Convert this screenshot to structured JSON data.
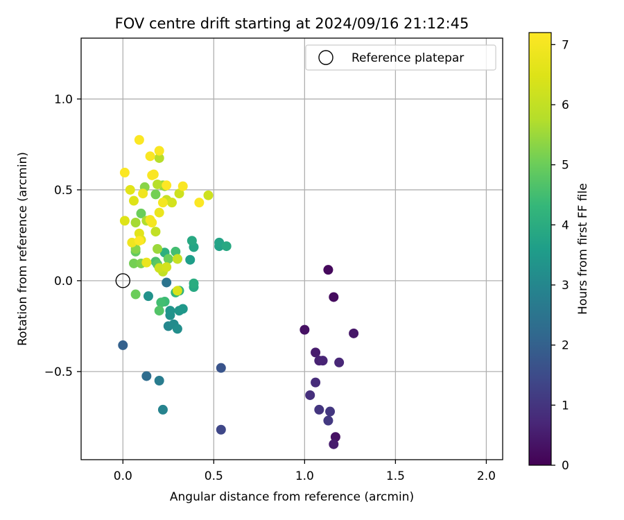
{
  "chart_data": {
    "type": "scatter",
    "title": "FOV centre drift starting at 2024/09/16 21:12:45",
    "xlabel": "Angular distance from reference (arcmin)",
    "ylabel": "Rotation from reference (arcmin)",
    "xlim": [
      -0.23,
      2.09
    ],
    "ylim": [
      -0.985,
      1.335
    ],
    "xticks": [
      0.0,
      0.5,
      1.0,
      1.5,
      2.0
    ],
    "xtick_labels": [
      "0.0",
      "0.5",
      "1.0",
      "1.5",
      "2.0"
    ],
    "yticks": [
      -0.5,
      0.0,
      0.5,
      1.0
    ],
    "ytick_labels": [
      "−0.5",
      "0.0",
      "0.5",
      "1.0"
    ],
    "grid": true,
    "legend": {
      "position": "top-right",
      "entries": [
        "Reference platepar"
      ]
    },
    "reference_point": {
      "x": 0.0,
      "y": 0.0,
      "label": "Reference platepar"
    },
    "colorbar": {
      "label": "Hours from first FF file",
      "range": [
        0,
        7.2
      ],
      "ticks": [
        0,
        1,
        2,
        3,
        4,
        5,
        6,
        7
      ],
      "tick_labels": [
        "0",
        "1",
        "2",
        "3",
        "4",
        "5",
        "6",
        "7"
      ],
      "colormap": "viridis"
    },
    "points": [
      {
        "x": 1.13,
        "y": 0.06,
        "hours": 0.15
      },
      {
        "x": 1.16,
        "y": -0.09,
        "hours": 0.2
      },
      {
        "x": 1.0,
        "y": -0.27,
        "hours": 0.3
      },
      {
        "x": 1.27,
        "y": -0.29,
        "hours": 0.4
      },
      {
        "x": 1.06,
        "y": -0.395,
        "hours": 0.5
      },
      {
        "x": 1.08,
        "y": -0.44,
        "hours": 0.6
      },
      {
        "x": 1.1,
        "y": -0.44,
        "hours": 0.65
      },
      {
        "x": 1.19,
        "y": -0.45,
        "hours": 0.7
      },
      {
        "x": 1.06,
        "y": -0.56,
        "hours": 0.8
      },
      {
        "x": 1.03,
        "y": -0.63,
        "hours": 0.9
      },
      {
        "x": 1.08,
        "y": -0.71,
        "hours": 1.0
      },
      {
        "x": 1.14,
        "y": -0.72,
        "hours": 1.05
      },
      {
        "x": 1.13,
        "y": -0.77,
        "hours": 1.1
      },
      {
        "x": 1.17,
        "y": -0.86,
        "hours": 0.3
      },
      {
        "x": 1.16,
        "y": -0.9,
        "hours": 0.5
      },
      {
        "x": 0.54,
        "y": -0.82,
        "hours": 1.4
      },
      {
        "x": 0.54,
        "y": -0.48,
        "hours": 1.7
      },
      {
        "x": 0.0,
        "y": -0.355,
        "hours": 2.0
      },
      {
        "x": 0.13,
        "y": -0.525,
        "hours": 2.3
      },
      {
        "x": 0.2,
        "y": -0.55,
        "hours": 2.7
      },
      {
        "x": 0.22,
        "y": -0.71,
        "hours": 2.9
      },
      {
        "x": 0.24,
        "y": -0.01,
        "hours": 2.5
      },
      {
        "x": 0.25,
        "y": -0.25,
        "hours": 3.0
      },
      {
        "x": 0.28,
        "y": -0.24,
        "hours": 3.1
      },
      {
        "x": 0.3,
        "y": -0.265,
        "hours": 3.2
      },
      {
        "x": 0.26,
        "y": -0.19,
        "hours": 3.3
      },
      {
        "x": 0.26,
        "y": -0.165,
        "hours": 3.35
      },
      {
        "x": 0.31,
        "y": -0.165,
        "hours": 3.4
      },
      {
        "x": 0.33,
        "y": -0.155,
        "hours": 3.45
      },
      {
        "x": 0.14,
        "y": -0.085,
        "hours": 3.3
      },
      {
        "x": 0.37,
        "y": 0.115,
        "hours": 3.6
      },
      {
        "x": 0.39,
        "y": 0.185,
        "hours": 3.8
      },
      {
        "x": 0.38,
        "y": 0.22,
        "hours": 3.9
      },
      {
        "x": 0.53,
        "y": 0.19,
        "hours": 3.7
      },
      {
        "x": 0.53,
        "y": 0.21,
        "hours": 3.75
      },
      {
        "x": 0.57,
        "y": 0.19,
        "hours": 3.9
      },
      {
        "x": 0.39,
        "y": -0.035,
        "hours": 3.9
      },
      {
        "x": 0.39,
        "y": -0.015,
        "hours": 4.0
      },
      {
        "x": 0.31,
        "y": -0.055,
        "hours": 4.2
      },
      {
        "x": 0.29,
        "y": -0.065,
        "hours": 4.3
      },
      {
        "x": 0.23,
        "y": 0.155,
        "hours": 4.1
      },
      {
        "x": 0.23,
        "y": -0.115,
        "hours": 4.4
      },
      {
        "x": 0.21,
        "y": -0.12,
        "hours": 4.5
      },
      {
        "x": 0.2,
        "y": -0.165,
        "hours": 4.7
      },
      {
        "x": 0.18,
        "y": 0.105,
        "hours": 4.6
      },
      {
        "x": 0.19,
        "y": 0.09,
        "hours": 4.8
      },
      {
        "x": 0.29,
        "y": 0.16,
        "hours": 4.5
      },
      {
        "x": 0.3,
        "y": 0.12,
        "hours": 4.8
      },
      {
        "x": 0.25,
        "y": 0.12,
        "hours": 5.0
      },
      {
        "x": 0.07,
        "y": 0.16,
        "hours": 4.9
      },
      {
        "x": 0.07,
        "y": -0.075,
        "hours": 5.0
      },
      {
        "x": 0.1,
        "y": 0.37,
        "hours": 5.0
      },
      {
        "x": 0.06,
        "y": 0.095,
        "hours": 5.1
      },
      {
        "x": 0.07,
        "y": 0.175,
        "hours": 5.3
      },
      {
        "x": 0.1,
        "y": 0.095,
        "hours": 5.2
      },
      {
        "x": 0.12,
        "y": 0.515,
        "hours": 5.3
      },
      {
        "x": 0.18,
        "y": 0.475,
        "hours": 5.1
      },
      {
        "x": 0.19,
        "y": 0.175,
        "hours": 5.5
      },
      {
        "x": 0.07,
        "y": 0.32,
        "hours": 5.6
      },
      {
        "x": 0.22,
        "y": 0.525,
        "hours": 5.4
      },
      {
        "x": 0.23,
        "y": 0.52,
        "hours": 5.5
      },
      {
        "x": 0.13,
        "y": 0.33,
        "hours": 5.7
      },
      {
        "x": 0.19,
        "y": 0.53,
        "hours": 5.8
      },
      {
        "x": 0.22,
        "y": 0.05,
        "hours": 6.0
      },
      {
        "x": 0.2,
        "y": 0.07,
        "hours": 6.2
      },
      {
        "x": 0.24,
        "y": 0.075,
        "hours": 6.3
      },
      {
        "x": 0.2,
        "y": 0.675,
        "hours": 5.8
      },
      {
        "x": 0.18,
        "y": 0.27,
        "hours": 6.0
      },
      {
        "x": 0.24,
        "y": 0.445,
        "hours": 6.1
      },
      {
        "x": 0.47,
        "y": 0.47,
        "hours": 6.2
      },
      {
        "x": 0.31,
        "y": 0.48,
        "hours": 6.2
      },
      {
        "x": 0.3,
        "y": 0.12,
        "hours": 6.1
      },
      {
        "x": 0.27,
        "y": 0.43,
        "hours": 6.3
      },
      {
        "x": 0.3,
        "y": -0.055,
        "hours": 6.4
      },
      {
        "x": 0.01,
        "y": 0.33,
        "hours": 6.5
      },
      {
        "x": 0.06,
        "y": 0.44,
        "hours": 6.5
      },
      {
        "x": 0.04,
        "y": 0.5,
        "hours": 6.6
      },
      {
        "x": 0.09,
        "y": 0.26,
        "hours": 6.6
      },
      {
        "x": 0.1,
        "y": 0.225,
        "hours": 6.6
      },
      {
        "x": 0.2,
        "y": 0.375,
        "hours": 6.8
      },
      {
        "x": 0.13,
        "y": 0.1,
        "hours": 6.8
      },
      {
        "x": 0.05,
        "y": 0.21,
        "hours": 6.9
      },
      {
        "x": 0.11,
        "y": 0.48,
        "hours": 6.9
      },
      {
        "x": 0.15,
        "y": 0.335,
        "hours": 7.0
      },
      {
        "x": 0.16,
        "y": 0.32,
        "hours": 7.0
      },
      {
        "x": 0.22,
        "y": 0.43,
        "hours": 7.0
      },
      {
        "x": 0.16,
        "y": 0.58,
        "hours": 7.1
      },
      {
        "x": 0.17,
        "y": 0.585,
        "hours": 7.1
      },
      {
        "x": 0.2,
        "y": 0.715,
        "hours": 7.1
      },
      {
        "x": 0.15,
        "y": 0.685,
        "hours": 7.1
      },
      {
        "x": 0.09,
        "y": 0.775,
        "hours": 7.15
      },
      {
        "x": 0.01,
        "y": 0.595,
        "hours": 7.15
      },
      {
        "x": 0.33,
        "y": 0.52,
        "hours": 7.1
      },
      {
        "x": 0.42,
        "y": 0.43,
        "hours": 7.15
      },
      {
        "x": 0.09,
        "y": 0.22,
        "hours": 7.2
      },
      {
        "x": 0.24,
        "y": 0.525,
        "hours": 7.2
      }
    ]
  }
}
